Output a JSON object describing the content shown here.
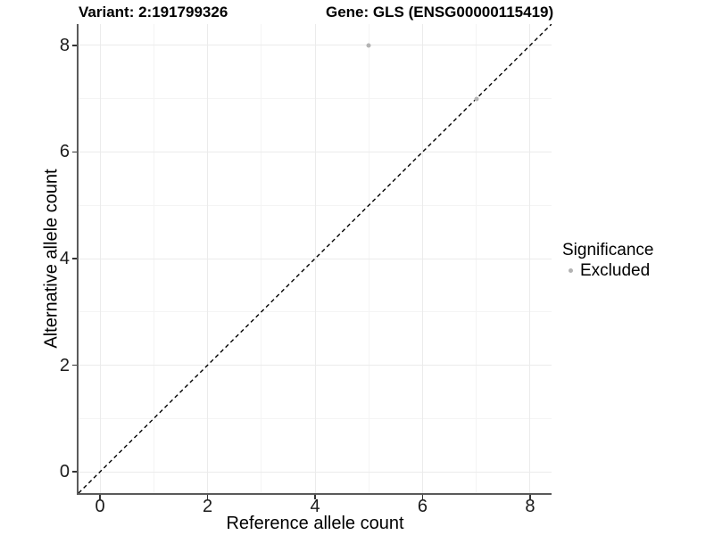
{
  "chart_data": {
    "type": "scatter",
    "titles": {
      "left": "Variant: 2:191799326",
      "right": "Gene: GLS (ENSG00000115419)"
    },
    "xlabel": "Reference allele count",
    "ylabel": "Alternative allele count",
    "xlim": [
      -0.4,
      8.4
    ],
    "ylim": [
      -0.4,
      8.4
    ],
    "x_major_ticks": [
      0,
      2,
      4,
      6,
      8
    ],
    "x_minor_ticks": [
      1,
      3,
      5,
      7
    ],
    "y_major_ticks": [
      0,
      2,
      4,
      6,
      8
    ],
    "y_minor_ticks": [
      1,
      3,
      5,
      7
    ],
    "grid": true,
    "series": [
      {
        "name": "Excluded",
        "color": "#b3b3b3",
        "points": [
          {
            "x": 5,
            "y": 8
          },
          {
            "x": 7,
            "y": 7
          }
        ]
      }
    ],
    "reference_line": {
      "type": "identity",
      "style": "dashed",
      "color": "#000000"
    },
    "legend": {
      "position": "right",
      "title": "Significance",
      "items": [
        {
          "label": "Excluded",
          "color": "#b3b3b3",
          "marker": "circle"
        }
      ]
    }
  }
}
